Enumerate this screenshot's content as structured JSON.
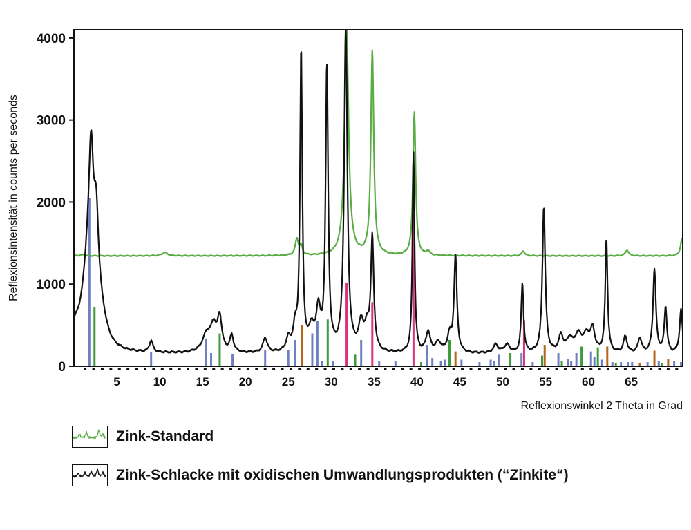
{
  "chart_data": {
    "type": "line",
    "ylabel": "Reflexionsintensität in counts per seconds",
    "xlabel": "Reflexionswinkel 2 Theta in Grad",
    "xlim": [
      0,
      71
    ],
    "ylim": [
      0,
      4100
    ],
    "x_ticks": [
      5,
      10,
      15,
      20,
      25,
      30,
      35,
      40,
      45,
      50,
      55,
      60,
      65
    ],
    "y_ticks": [
      0,
      1000,
      2000,
      3000,
      4000
    ],
    "colors": {
      "standard": "#5aac44",
      "slag": "#111111"
    },
    "series": [
      {
        "name": "Zink-Standard",
        "color": "#5aac44",
        "baseline": 1345,
        "peaks": [
          [
            1.0,
            15,
            0.3
          ],
          [
            10.6,
            40,
            0.4
          ],
          [
            26.0,
            200,
            0.22
          ],
          [
            26.5,
            110,
            0.18
          ],
          [
            31.8,
            2750,
            0.28
          ],
          [
            34.8,
            2480,
            0.2
          ],
          [
            39.7,
            1750,
            0.18
          ],
          [
            41.3,
            50,
            0.2
          ],
          [
            52.4,
            60,
            0.2
          ],
          [
            64.5,
            70,
            0.22
          ],
          [
            70.9,
            200,
            0.2
          ]
        ]
      },
      {
        "name": "Zink-Schlacke mit oxidischen Umwandlungsprodukten (“Zinkite“)",
        "color": "#111111",
        "baseline": 150,
        "peaks": [
          [
            0.2,
            220,
            0.8
          ],
          [
            1.5,
            700,
            0.7
          ],
          [
            2.0,
            1850,
            0.35
          ],
          [
            2.6,
            1150,
            0.35
          ],
          [
            3.2,
            300,
            0.8
          ],
          [
            9.0,
            140,
            0.25
          ],
          [
            15.5,
            220,
            0.6
          ],
          [
            16.3,
            280,
            0.4
          ],
          [
            17.0,
            400,
            0.3
          ],
          [
            18.4,
            200,
            0.25
          ],
          [
            22.3,
            180,
            0.3
          ],
          [
            25.0,
            150,
            0.3
          ],
          [
            25.8,
            260,
            0.3
          ],
          [
            26.5,
            3650,
            0.16
          ],
          [
            27.7,
            260,
            0.35
          ],
          [
            28.5,
            480,
            0.3
          ],
          [
            29.5,
            3440,
            0.18
          ],
          [
            31.7,
            3950,
            0.22
          ],
          [
            33.5,
            320,
            0.35
          ],
          [
            34.2,
            250,
            0.35
          ],
          [
            34.8,
            1350,
            0.2
          ],
          [
            39.6,
            2450,
            0.14
          ],
          [
            41.3,
            250,
            0.3
          ],
          [
            42.5,
            120,
            0.4
          ],
          [
            43.8,
            200,
            0.3
          ],
          [
            44.5,
            1170,
            0.2
          ],
          [
            49.2,
            100,
            0.35
          ],
          [
            50.5,
            100,
            0.4
          ],
          [
            52.3,
            840,
            0.16
          ],
          [
            54.8,
            1780,
            0.2
          ],
          [
            56.8,
            200,
            0.3
          ],
          [
            57.8,
            150,
            0.4
          ],
          [
            58.8,
            200,
            0.5
          ],
          [
            59.8,
            200,
            0.5
          ],
          [
            60.5,
            250,
            0.3
          ],
          [
            62.1,
            1380,
            0.16
          ],
          [
            64.3,
            200,
            0.25
          ],
          [
            66.0,
            180,
            0.25
          ],
          [
            67.7,
            1020,
            0.2
          ],
          [
            69.0,
            550,
            0.18
          ],
          [
            70.8,
            530,
            0.2
          ]
        ]
      }
    ],
    "reference_colors": {
      "blue": "#6f80c2",
      "green": "#3f9a3b",
      "orange": "#b5641c",
      "pink": "#d8347d"
    },
    "reference_lines": [
      {
        "x": 1.8,
        "h": 2050,
        "c": "blue"
      },
      {
        "x": 2.4,
        "h": 720,
        "c": "green"
      },
      {
        "x": 9.0,
        "h": 170,
        "c": "blue"
      },
      {
        "x": 15.4,
        "h": 330,
        "c": "blue"
      },
      {
        "x": 16.0,
        "h": 160,
        "c": "blue"
      },
      {
        "x": 17.0,
        "h": 400,
        "c": "green"
      },
      {
        "x": 18.5,
        "h": 150,
        "c": "blue"
      },
      {
        "x": 22.3,
        "h": 200,
        "c": "blue"
      },
      {
        "x": 25.0,
        "h": 200,
        "c": "blue"
      },
      {
        "x": 25.8,
        "h": 320,
        "c": "blue"
      },
      {
        "x": 26.6,
        "h": 500,
        "c": "orange"
      },
      {
        "x": 27.8,
        "h": 400,
        "c": "blue"
      },
      {
        "x": 28.4,
        "h": 550,
        "c": "blue"
      },
      {
        "x": 28.9,
        "h": 60,
        "c": "blue"
      },
      {
        "x": 29.6,
        "h": 570,
        "c": "green"
      },
      {
        "x": 30.2,
        "h": 60,
        "c": "blue"
      },
      {
        "x": 31.8,
        "h": 1020,
        "c": "pink"
      },
      {
        "x": 32.8,
        "h": 140,
        "c": "green"
      },
      {
        "x": 33.5,
        "h": 320,
        "c": "blue"
      },
      {
        "x": 34.8,
        "h": 780,
        "c": "pink"
      },
      {
        "x": 35.6,
        "h": 60,
        "c": "blue"
      },
      {
        "x": 37.5,
        "h": 60,
        "c": "blue"
      },
      {
        "x": 39.6,
        "h": 1850,
        "c": "pink"
      },
      {
        "x": 40.5,
        "h": 50,
        "c": "green"
      },
      {
        "x": 41.2,
        "h": 260,
        "c": "blue"
      },
      {
        "x": 41.8,
        "h": 100,
        "c": "blue"
      },
      {
        "x": 42.8,
        "h": 60,
        "c": "blue"
      },
      {
        "x": 43.3,
        "h": 80,
        "c": "blue"
      },
      {
        "x": 43.8,
        "h": 320,
        "c": "green"
      },
      {
        "x": 44.5,
        "h": 180,
        "c": "orange"
      },
      {
        "x": 45.2,
        "h": 80,
        "c": "blue"
      },
      {
        "x": 47.3,
        "h": 50,
        "c": "blue"
      },
      {
        "x": 48.6,
        "h": 80,
        "c": "blue"
      },
      {
        "x": 49.0,
        "h": 60,
        "c": "blue"
      },
      {
        "x": 49.6,
        "h": 140,
        "c": "blue"
      },
      {
        "x": 50.9,
        "h": 160,
        "c": "green"
      },
      {
        "x": 52.2,
        "h": 160,
        "c": "blue"
      },
      {
        "x": 52.5,
        "h": 560,
        "c": "pink"
      },
      {
        "x": 53.5,
        "h": 50,
        "c": "blue"
      },
      {
        "x": 54.6,
        "h": 130,
        "c": "green"
      },
      {
        "x": 54.9,
        "h": 260,
        "c": "orange"
      },
      {
        "x": 56.5,
        "h": 160,
        "c": "blue"
      },
      {
        "x": 56.9,
        "h": 60,
        "c": "green"
      },
      {
        "x": 57.6,
        "h": 90,
        "c": "blue"
      },
      {
        "x": 58.0,
        "h": 60,
        "c": "blue"
      },
      {
        "x": 58.6,
        "h": 160,
        "c": "blue"
      },
      {
        "x": 59.2,
        "h": 240,
        "c": "green"
      },
      {
        "x": 60.3,
        "h": 180,
        "c": "blue"
      },
      {
        "x": 60.7,
        "h": 110,
        "c": "blue"
      },
      {
        "x": 61.1,
        "h": 230,
        "c": "green"
      },
      {
        "x": 61.6,
        "h": 80,
        "c": "blue"
      },
      {
        "x": 62.2,
        "h": 240,
        "c": "orange"
      },
      {
        "x": 62.8,
        "h": 50,
        "c": "blue"
      },
      {
        "x": 63.2,
        "h": 40,
        "c": "green"
      },
      {
        "x": 63.8,
        "h": 50,
        "c": "blue"
      },
      {
        "x": 64.6,
        "h": 50,
        "c": "blue"
      },
      {
        "x": 65.1,
        "h": 50,
        "c": "blue"
      },
      {
        "x": 66.0,
        "h": 40,
        "c": "orange"
      },
      {
        "x": 66.9,
        "h": 50,
        "c": "blue"
      },
      {
        "x": 67.7,
        "h": 190,
        "c": "orange"
      },
      {
        "x": 68.2,
        "h": 60,
        "c": "blue"
      },
      {
        "x": 68.6,
        "h": 40,
        "c": "green"
      },
      {
        "x": 69.3,
        "h": 90,
        "c": "orange"
      },
      {
        "x": 70.0,
        "h": 60,
        "c": "blue"
      },
      {
        "x": 70.8,
        "h": 50,
        "c": "blue"
      }
    ]
  },
  "legend": [
    {
      "label": "Zink-Standard",
      "color": "#5aac44"
    },
    {
      "label": "Zink-Schlacke mit oxidischen Umwandlungsprodukten (“Zinkite“)",
      "color": "#111111"
    }
  ]
}
